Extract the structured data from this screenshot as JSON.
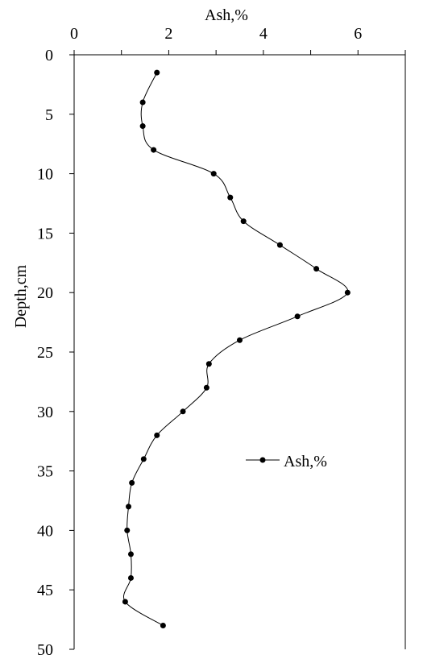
{
  "chart_data": {
    "type": "line",
    "title": "",
    "xlabel": "Ash,%",
    "ylabel": "Depth,cm",
    "xlim": [
      0,
      7
    ],
    "ylim": [
      0,
      50
    ],
    "x_axis_position": "top",
    "y_axis_inverted": true,
    "x_ticks": [
      "0",
      "2",
      "4",
      "6"
    ],
    "y_ticks": [
      "0",
      "5",
      "10",
      "15",
      "20",
      "25",
      "30",
      "35",
      "40",
      "45",
      "50"
    ],
    "grid": false,
    "legend": {
      "position": "right-middle"
    },
    "series": [
      {
        "name": "Ash,%",
        "color": "#000000",
        "marker": "circle",
        "smooth": true,
        "points": [
          {
            "x": 1.75,
            "y": 1.5
          },
          {
            "x": 1.45,
            "y": 4
          },
          {
            "x": 1.45,
            "y": 6
          },
          {
            "x": 1.68,
            "y": 8
          },
          {
            "x": 2.95,
            "y": 10
          },
          {
            "x": 3.3,
            "y": 12
          },
          {
            "x": 3.58,
            "y": 14
          },
          {
            "x": 4.35,
            "y": 16
          },
          {
            "x": 5.12,
            "y": 18
          },
          {
            "x": 5.78,
            "y": 20
          },
          {
            "x": 4.72,
            "y": 22
          },
          {
            "x": 3.5,
            "y": 24
          },
          {
            "x": 2.85,
            "y": 26
          },
          {
            "x": 2.8,
            "y": 28
          },
          {
            "x": 2.3,
            "y": 30
          },
          {
            "x": 1.75,
            "y": 32
          },
          {
            "x": 1.47,
            "y": 34
          },
          {
            "x": 1.22,
            "y": 36
          },
          {
            "x": 1.15,
            "y": 38
          },
          {
            "x": 1.12,
            "y": 40
          },
          {
            "x": 1.2,
            "y": 42
          },
          {
            "x": 1.2,
            "y": 44
          },
          {
            "x": 1.08,
            "y": 46
          },
          {
            "x": 1.88,
            "y": 48
          }
        ]
      }
    ]
  }
}
